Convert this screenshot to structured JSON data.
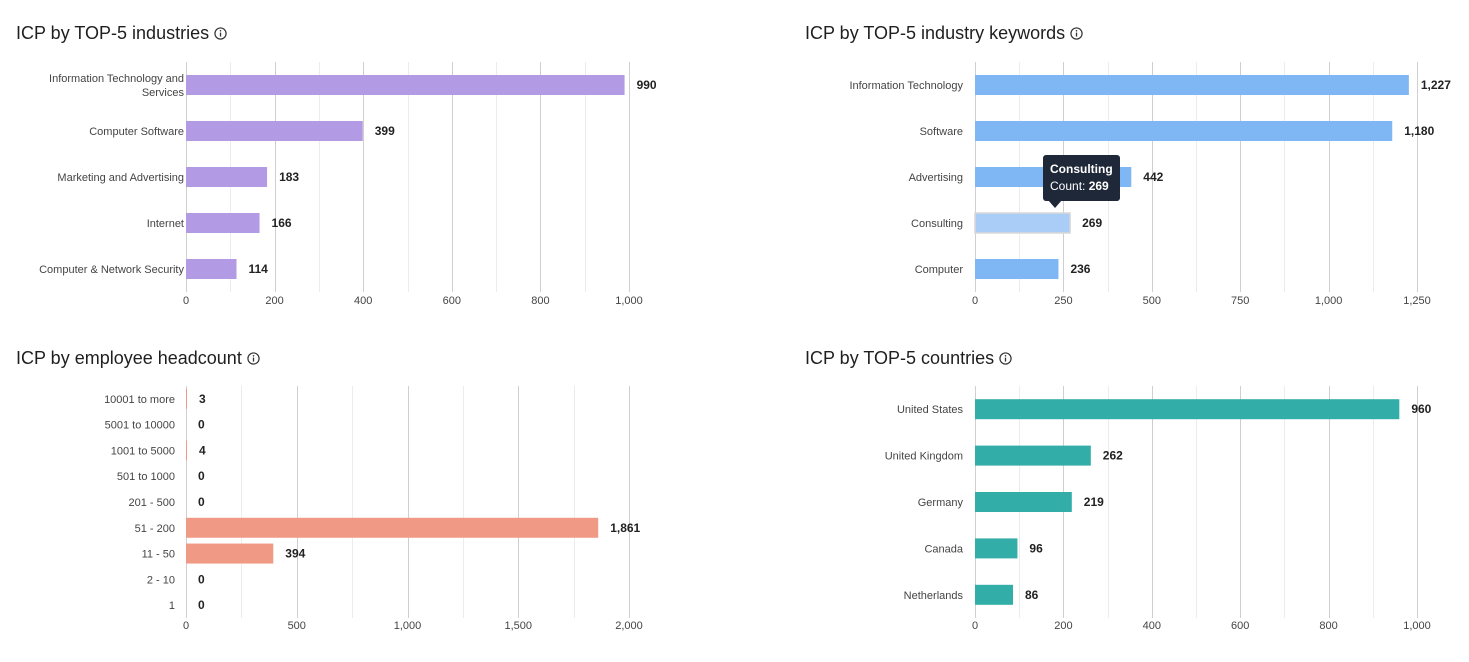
{
  "panels": [
    {
      "title": "ICP by TOP-5 industries",
      "chart_data": {
        "type": "bar",
        "orientation": "horizontal",
        "title": "ICP by TOP-5 industries",
        "categories": [
          "Information Technology and Services",
          "Computer Software",
          "Marketing and Advertising",
          "Internet",
          "Computer & Network Security"
        ],
        "category_lines": [
          [
            "Information Technology and",
            "Services"
          ],
          [
            "Computer Software"
          ],
          [
            "Marketing and Advertising"
          ],
          [
            "Internet"
          ],
          [
            "Computer & Network Security"
          ]
        ],
        "values": [
          990,
          399,
          183,
          166,
          114
        ],
        "value_labels": [
          "990",
          "399",
          "183",
          "166",
          "114"
        ],
        "ticks": [
          0,
          200,
          400,
          600,
          800,
          1000
        ],
        "tick_labels": [
          "0",
          "200",
          "400",
          "600",
          "800",
          "1,000"
        ],
        "xlim": [
          0,
          1000
        ],
        "color": "#b39ae4",
        "grid": true
      }
    },
    {
      "title": "ICP by TOP-5 industry keywords",
      "chart_data": {
        "type": "bar",
        "orientation": "horizontal",
        "title": "ICP by TOP-5 industry keywords",
        "categories": [
          "Information Technology",
          "Software",
          "Advertising",
          "Consulting",
          "Computer"
        ],
        "category_lines": [
          [
            "Information Technology"
          ],
          [
            "Software"
          ],
          [
            "Advertising"
          ],
          [
            "Consulting"
          ],
          [
            "Computer"
          ]
        ],
        "values": [
          1227,
          1180,
          442,
          269,
          236
        ],
        "value_labels": [
          "1,227",
          "1,180",
          "442",
          "269",
          "236"
        ],
        "ticks": [
          0,
          250,
          500,
          750,
          1000,
          1250
        ],
        "tick_labels": [
          "0",
          "250",
          "500",
          "750",
          "1,000",
          "1,250"
        ],
        "xlim": [
          0,
          1250
        ],
        "color": "#7fb7f4",
        "grid": true,
        "tooltip": {
          "category": "Consulting",
          "name": "Consulting",
          "count_label": "Count:",
          "count_value": "269"
        }
      }
    },
    {
      "title": "ICP by employee headcount",
      "chart_data": {
        "type": "bar",
        "orientation": "horizontal",
        "title": "ICP by employee headcount",
        "categories": [
          "10001 to more",
          "5001 to 10000",
          "1001 to 5000",
          "501 to 1000",
          "201 - 500",
          "51 - 200",
          "11 - 50",
          "2 - 10",
          "1"
        ],
        "category_lines": [
          [
            "10001 to more"
          ],
          [
            "5001 to 10000"
          ],
          [
            "1001 to 5000"
          ],
          [
            "501 to 1000"
          ],
          [
            "201 - 500"
          ],
          [
            "51 - 200"
          ],
          [
            "11 - 50"
          ],
          [
            "2 - 10"
          ],
          [
            "1"
          ]
        ],
        "values": [
          3,
          0,
          4,
          0,
          0,
          1861,
          394,
          0,
          0
        ],
        "value_labels": [
          "3",
          "0",
          "4",
          "0",
          "0",
          "1,861",
          "394",
          "0",
          "0"
        ],
        "ticks": [
          0,
          500,
          1000,
          1500,
          2000
        ],
        "tick_labels": [
          "0",
          "500",
          "1,000",
          "1,500",
          "2,000"
        ],
        "xlim": [
          0,
          2000
        ],
        "color": "#f09a85",
        "grid": true
      }
    },
    {
      "title": "ICP by TOP-5 countries",
      "chart_data": {
        "type": "bar",
        "orientation": "horizontal",
        "title": "ICP by TOP-5 countries",
        "categories": [
          "United States",
          "United Kingdom",
          "Germany",
          "Canada",
          "Netherlands"
        ],
        "category_lines": [
          [
            "United States"
          ],
          [
            "United Kingdom"
          ],
          [
            "Germany"
          ],
          [
            "Canada"
          ],
          [
            "Netherlands"
          ]
        ],
        "values": [
          960,
          262,
          219,
          96,
          86
        ],
        "value_labels": [
          "960",
          "262",
          "219",
          "96",
          "86"
        ],
        "ticks": [
          0,
          200,
          400,
          600,
          800,
          1000
        ],
        "tick_labels": [
          "0",
          "200",
          "400",
          "600",
          "800",
          "1,000"
        ],
        "xlim": [
          0,
          1000
        ],
        "color": "#33ada8",
        "grid": true
      }
    }
  ]
}
